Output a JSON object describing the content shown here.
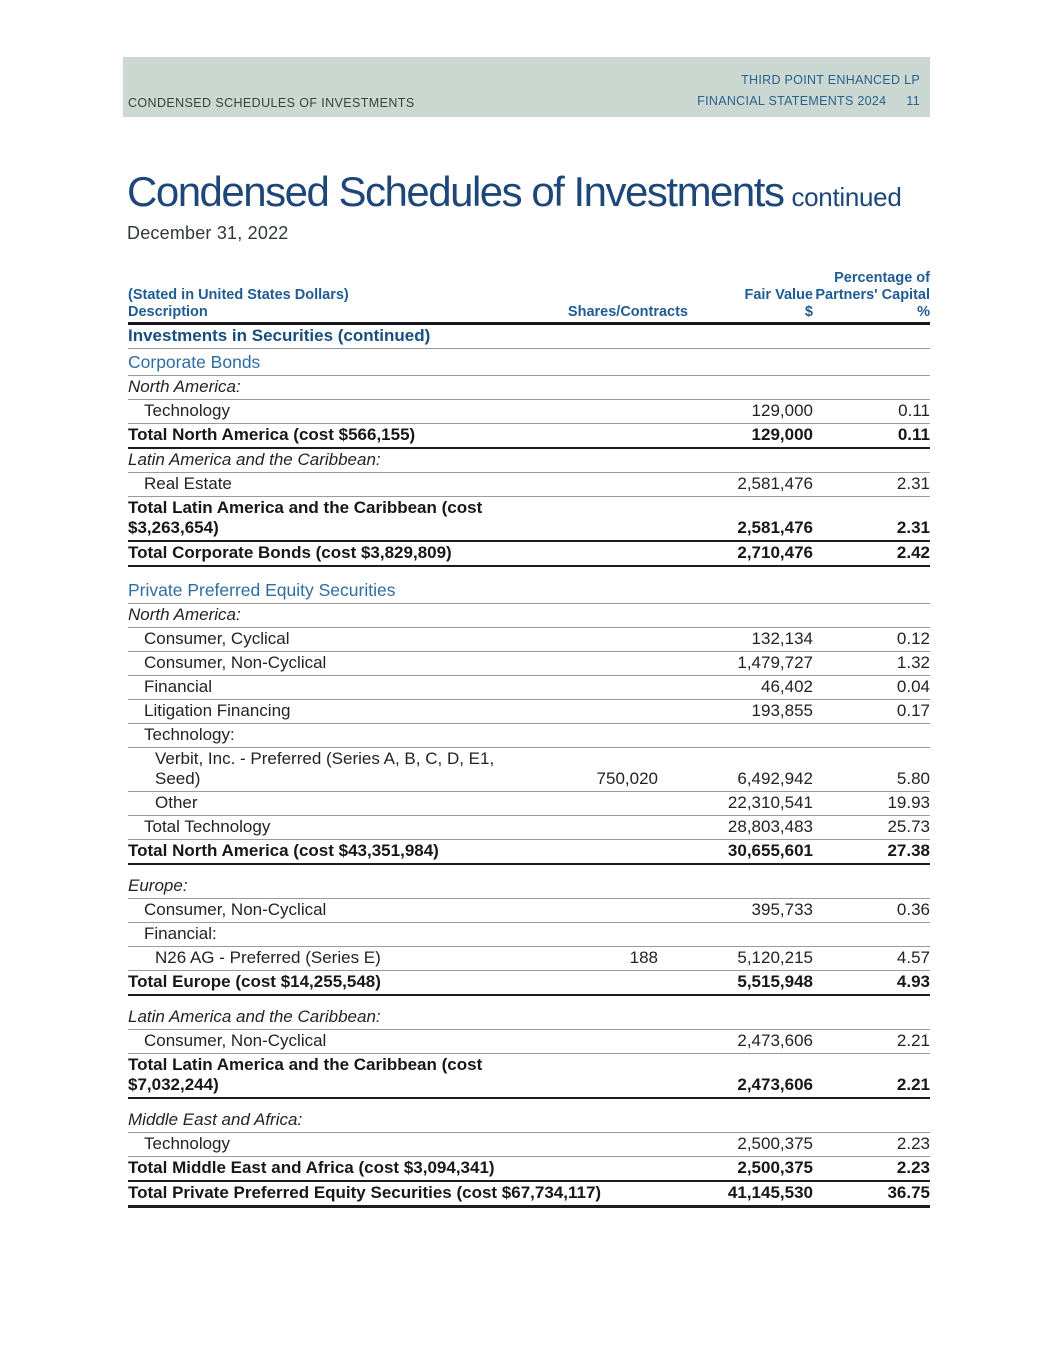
{
  "page_header": {
    "left": "CONDENSED SCHEDULES OF INVESTMENTS",
    "right_line1": "THIRD POINT ENHANCED LP",
    "right_line2": "FINANCIAL STATEMENTS 2024",
    "page_number": "11"
  },
  "title": {
    "main": "Condensed Schedules of Investments",
    "suffix": "continued",
    "date": "December 31, 2022"
  },
  "table": {
    "header": {
      "stated": "(Stated in United States Dollars)",
      "description": "Description",
      "shares_contracts": "Shares/Contracts",
      "fair_value": "Fair Value",
      "fair_value_unit": "$",
      "pct_line1": "Percentage of",
      "pct_line2": "Partners' Capital",
      "pct_unit": "%"
    },
    "rows": [
      {
        "desc": "Investments in Securities (continued)",
        "style": "bold-navy",
        "indent": 0,
        "shares": "",
        "fair": "",
        "pct": "",
        "rule": "thin"
      },
      {
        "desc": "Corporate Bonds",
        "style": "blue",
        "indent": 0,
        "shares": "",
        "fair": "",
        "pct": "",
        "rule": "thin"
      },
      {
        "desc": "North America:",
        "style": "italic",
        "indent": 0,
        "shares": "",
        "fair": "",
        "pct": "",
        "rule": "thin"
      },
      {
        "desc": "Technology",
        "style": "plain",
        "indent": 1,
        "shares": "",
        "fair": "129,000",
        "pct": "0.11",
        "rule": "thin"
      },
      {
        "desc": "Total North America (cost $566,155)",
        "style": "bold",
        "indent": 0,
        "shares": "",
        "fair": "129,000",
        "pct": "0.11",
        "rule": "thick"
      },
      {
        "desc": "Latin America and the Caribbean:",
        "style": "italic",
        "indent": 0,
        "shares": "",
        "fair": "",
        "pct": "",
        "rule": "thin"
      },
      {
        "desc": "Real Estate",
        "style": "plain",
        "indent": 1,
        "shares": "",
        "fair": "2,581,476",
        "pct": "2.31",
        "rule": "thin"
      },
      {
        "desc": [
          "Total Latin America and the Caribbean (cost",
          "$3,263,654)"
        ],
        "style": "bold",
        "indent": 0,
        "shares": "",
        "fair": "2,581,476",
        "pct": "2.31",
        "rule": "thick"
      },
      {
        "desc": "Total Corporate Bonds (cost $3,829,809)",
        "style": "bold",
        "indent": 0,
        "shares": "",
        "fair": "2,710,476",
        "pct": "2.42",
        "rule": "thick"
      },
      {
        "desc": "Private Preferred Equity Securities",
        "style": "blue",
        "indent": 0,
        "shares": "",
        "fair": "",
        "pct": "",
        "rule": "thin",
        "gap": true
      },
      {
        "desc": "North America:",
        "style": "italic",
        "indent": 0,
        "shares": "",
        "fair": "",
        "pct": "",
        "rule": "thin"
      },
      {
        "desc": "Consumer, Cyclical",
        "style": "plain",
        "indent": 1,
        "shares": "",
        "fair": "132,134",
        "pct": "0.12",
        "rule": "thin"
      },
      {
        "desc": "Consumer, Non-Cyclical",
        "style": "plain",
        "indent": 1,
        "shares": "",
        "fair": "1,479,727",
        "pct": "1.32",
        "rule": "thin"
      },
      {
        "desc": "Financial",
        "style": "plain",
        "indent": 1,
        "shares": "",
        "fair": "46,402",
        "pct": "0.04",
        "rule": "thin"
      },
      {
        "desc": "Litigation Financing",
        "style": "plain",
        "indent": 1,
        "shares": "",
        "fair": "193,855",
        "pct": "0.17",
        "rule": "thin"
      },
      {
        "desc": "Technology:",
        "style": "plain",
        "indent": 1,
        "shares": "",
        "fair": "",
        "pct": "",
        "rule": "thin"
      },
      {
        "desc": [
          "Verbit, Inc. - Preferred (Series A, B, C, D, E1,",
          "Seed)"
        ],
        "style": "plain",
        "indent": 2,
        "shares": "750,020",
        "fair": "6,492,942",
        "pct": "5.80",
        "rule": "thin"
      },
      {
        "desc": "Other",
        "style": "plain",
        "indent": 2,
        "shares": "",
        "fair": "22,310,541",
        "pct": "19.93",
        "rule": "thin"
      },
      {
        "desc": "Total Technology",
        "style": "plain",
        "indent": 1,
        "shares": "",
        "fair": "28,803,483",
        "pct": "25.73",
        "rule": "thin"
      },
      {
        "desc": "Total North America (cost $43,351,984)",
        "style": "bold",
        "indent": 0,
        "shares": "",
        "fair": "30,655,601",
        "pct": "27.38",
        "rule": "thick"
      },
      {
        "desc": "Europe:",
        "style": "italic",
        "indent": 0,
        "shares": "",
        "fair": "",
        "pct": "",
        "rule": "thin",
        "gap": true
      },
      {
        "desc": "Consumer, Non-Cyclical",
        "style": "plain",
        "indent": 1,
        "shares": "",
        "fair": "395,733",
        "pct": "0.36",
        "rule": "thin"
      },
      {
        "desc": "Financial:",
        "style": "plain",
        "indent": 1,
        "shares": "",
        "fair": "",
        "pct": "",
        "rule": "thin"
      },
      {
        "desc": "N26 AG - Preferred (Series E)",
        "style": "plain",
        "indent": 2,
        "shares": "188",
        "fair": "5,120,215",
        "pct": "4.57",
        "rule": "thin"
      },
      {
        "desc": "Total Europe (cost $14,255,548)",
        "style": "bold",
        "indent": 0,
        "shares": "",
        "fair": "5,515,948",
        "pct": "4.93",
        "rule": "thick"
      },
      {
        "desc": "Latin America and the Caribbean:",
        "style": "italic",
        "indent": 0,
        "shares": "",
        "fair": "",
        "pct": "",
        "rule": "thin",
        "gap": true
      },
      {
        "desc": "Consumer, Non-Cyclical",
        "style": "plain",
        "indent": 1,
        "shares": "",
        "fair": "2,473,606",
        "pct": "2.21",
        "rule": "thin"
      },
      {
        "desc": [
          "Total Latin America and the Caribbean (cost",
          "$7,032,244)"
        ],
        "style": "bold",
        "indent": 0,
        "shares": "",
        "fair": "2,473,606",
        "pct": "2.21",
        "rule": "thick"
      },
      {
        "desc": "Middle East and Africa:",
        "style": "italic",
        "indent": 0,
        "shares": "",
        "fair": "",
        "pct": "",
        "rule": "thin",
        "gap": true
      },
      {
        "desc": "Technology",
        "style": "plain",
        "indent": 1,
        "shares": "",
        "fair": "2,500,375",
        "pct": "2.23",
        "rule": "thin"
      },
      {
        "desc": "Total Middle East and Africa (cost $3,094,341)",
        "style": "bold",
        "indent": 0,
        "shares": "",
        "fair": "2,500,375",
        "pct": "2.23",
        "rule": "thick"
      },
      {
        "desc": "Total Private Preferred Equity Securities (cost $67,734,117)",
        "style": "bold",
        "indent": 0,
        "shares": "",
        "fair": "41,145,530",
        "pct": "36.75",
        "rule": "thick-final"
      }
    ]
  },
  "colors": {
    "header_band_bg": "#cbd8d2",
    "header_band_left_text": "#3b3f3e",
    "header_band_right_text": "#27618f",
    "title_navy": "#1d4778",
    "table_header_blue": "#1f5c93",
    "section_blue": "#2e6da3",
    "bold_navy": "#174e7f",
    "body_text": "#232323",
    "thin_rule": "#9b9b9b",
    "thick_rule": "#1c1c1c"
  }
}
